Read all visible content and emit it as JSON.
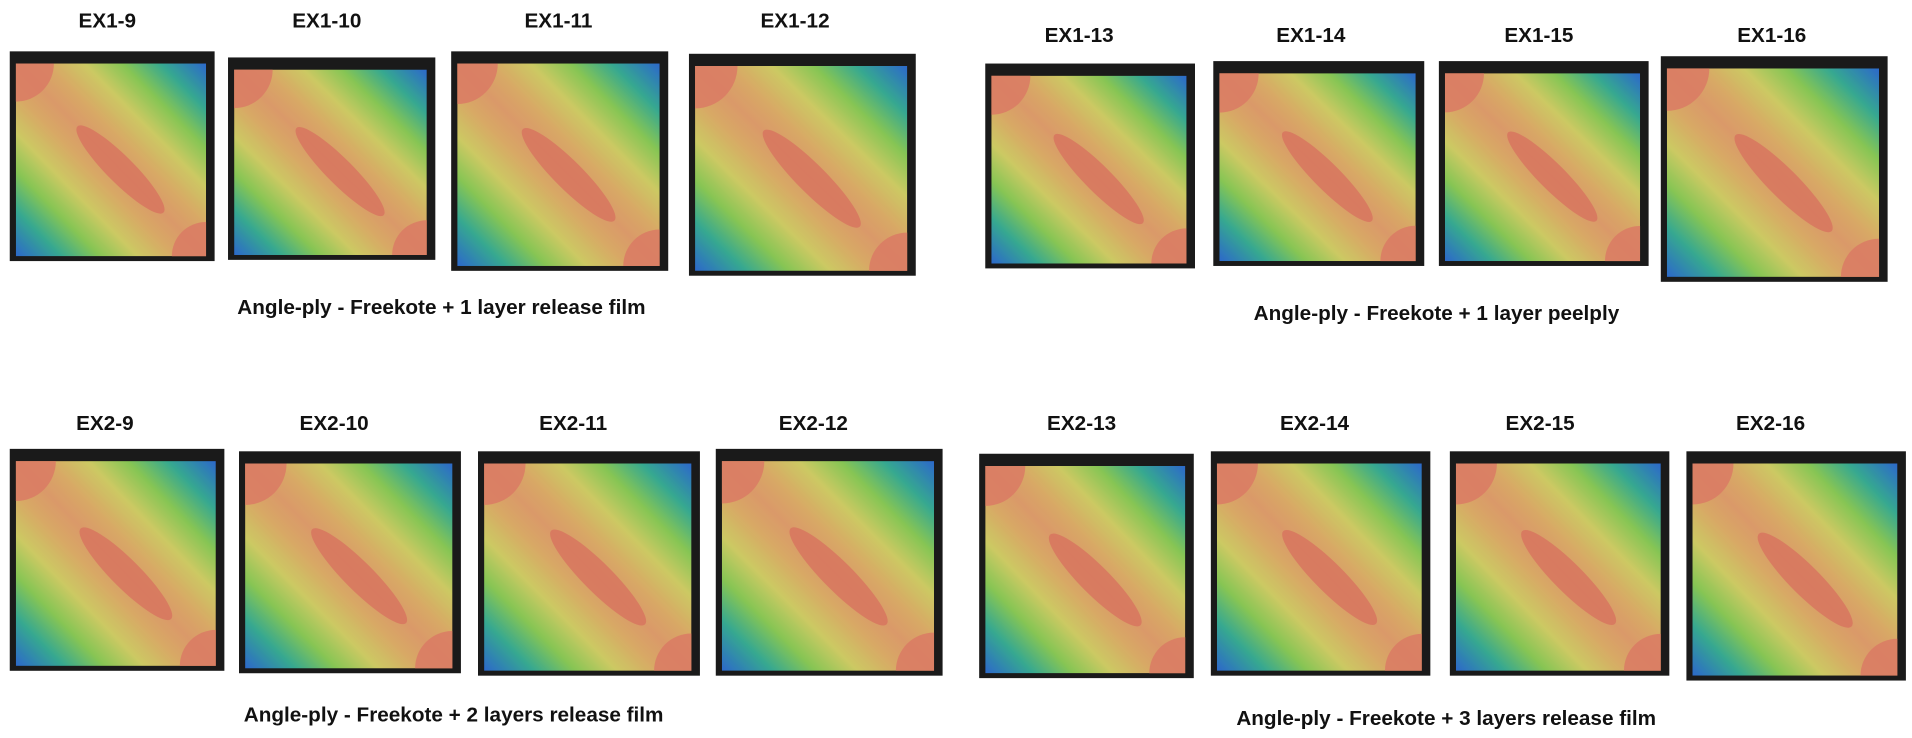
{
  "groups": [
    {
      "caption": "Angle-ply - Freekote + 1 layer release film",
      "panels": [
        "EX1-9",
        "EX1-10",
        "EX1-11",
        "EX1-12"
      ]
    },
    {
      "caption": "Angle-ply - Freekote + 1 layer peelply",
      "panels": [
        "EX1-13",
        "EX1-14",
        "EX1-15",
        "EX1-16"
      ]
    },
    {
      "caption": "Angle-ply - Freekote + 2 layers release film",
      "panels": [
        "EX2-9",
        "EX2-10",
        "EX2-11",
        "EX2-12"
      ]
    },
    {
      "caption": "Angle-ply - Freekote + 3 layers release film",
      "panels": [
        "EX2-13",
        "EX2-14",
        "EX2-15",
        "EX2-16"
      ]
    }
  ]
}
